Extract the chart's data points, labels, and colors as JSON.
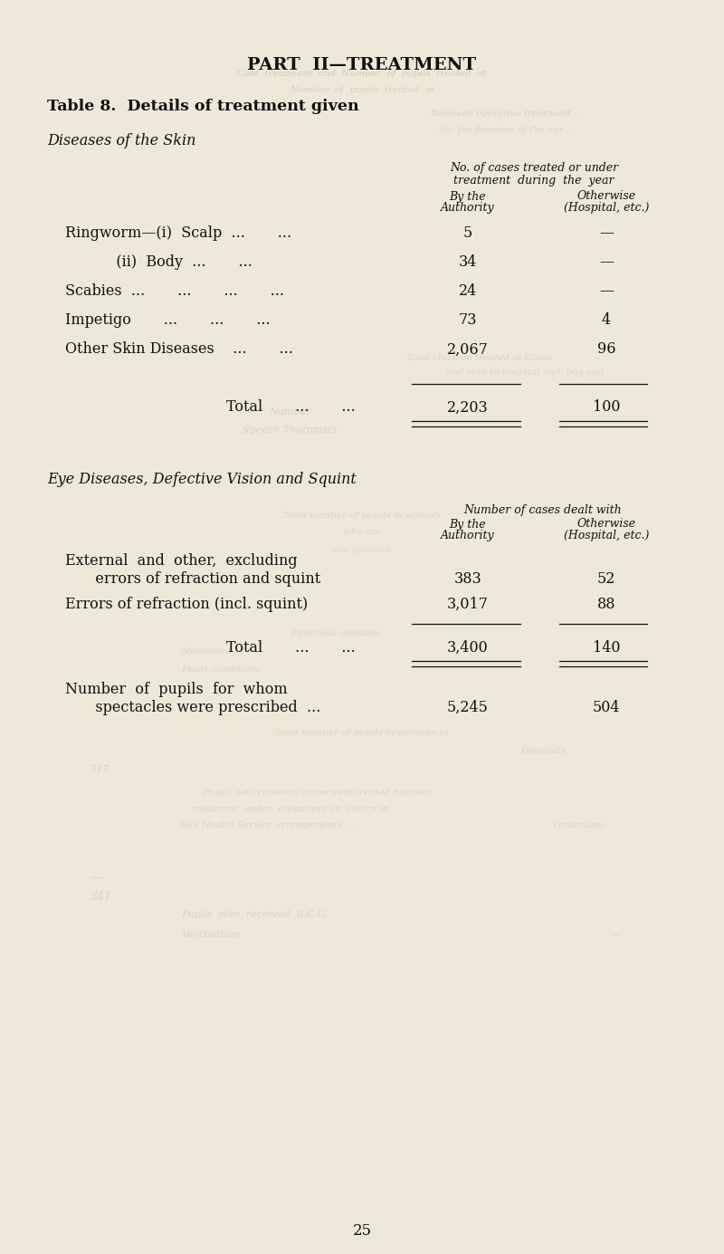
{
  "bg_color": "#ede8d8",
  "page_title": "PART  II—TREATMENT",
  "table_title": "Table 8.  Details of treatment given",
  "section1_title": "Diseases of the Skin",
  "section1_rows": [
    {
      "label": "Ringworm—(i)  Scalp  ...       ...",
      "val1": "5",
      "val2": "—"
    },
    {
      "label": "           (ii)  Body  ...       ...",
      "val1": "34",
      "val2": "—"
    },
    {
      "label": "Scabies  ...       ...       ...       ...",
      "val1": "24",
      "val2": "—"
    },
    {
      "label": "Impetigo       ...       ...       ...",
      "val1": "73",
      "val2": "4"
    },
    {
      "label": "Other Skin Diseases    ...       ...",
      "val1": "2,067",
      "val2": "96"
    }
  ],
  "section1_total_label": "Total       ...       ...",
  "section1_total_val1": "2,203",
  "section1_total_val2": "100",
  "section2_title": "Eye Diseases, Defective Vision and Squint",
  "section2_rows": [
    {
      "label_line1": "External  and  other,  excluding",
      "label_line2": "   errors of refraction and squint",
      "val1": "383",
      "val2": "52"
    },
    {
      "label_line1": "Errors of refraction (incl. squint)",
      "label_line2": "",
      "val1": "3,017",
      "val2": "88"
    }
  ],
  "section2_total_label": "Total       ...       ...",
  "section2_total_val1": "3,400",
  "section2_total_val2": "140",
  "section2_extra_line1": "Number  of  pupils  for  whom",
  "section2_extra_line2": "   spectacles were prescribed  ...",
  "section2_extra_val1": "5,245",
  "section2_extra_val2": "504",
  "page_number": "25",
  "text_color": "#111111",
  "ghost_color": "#b8b0a0"
}
